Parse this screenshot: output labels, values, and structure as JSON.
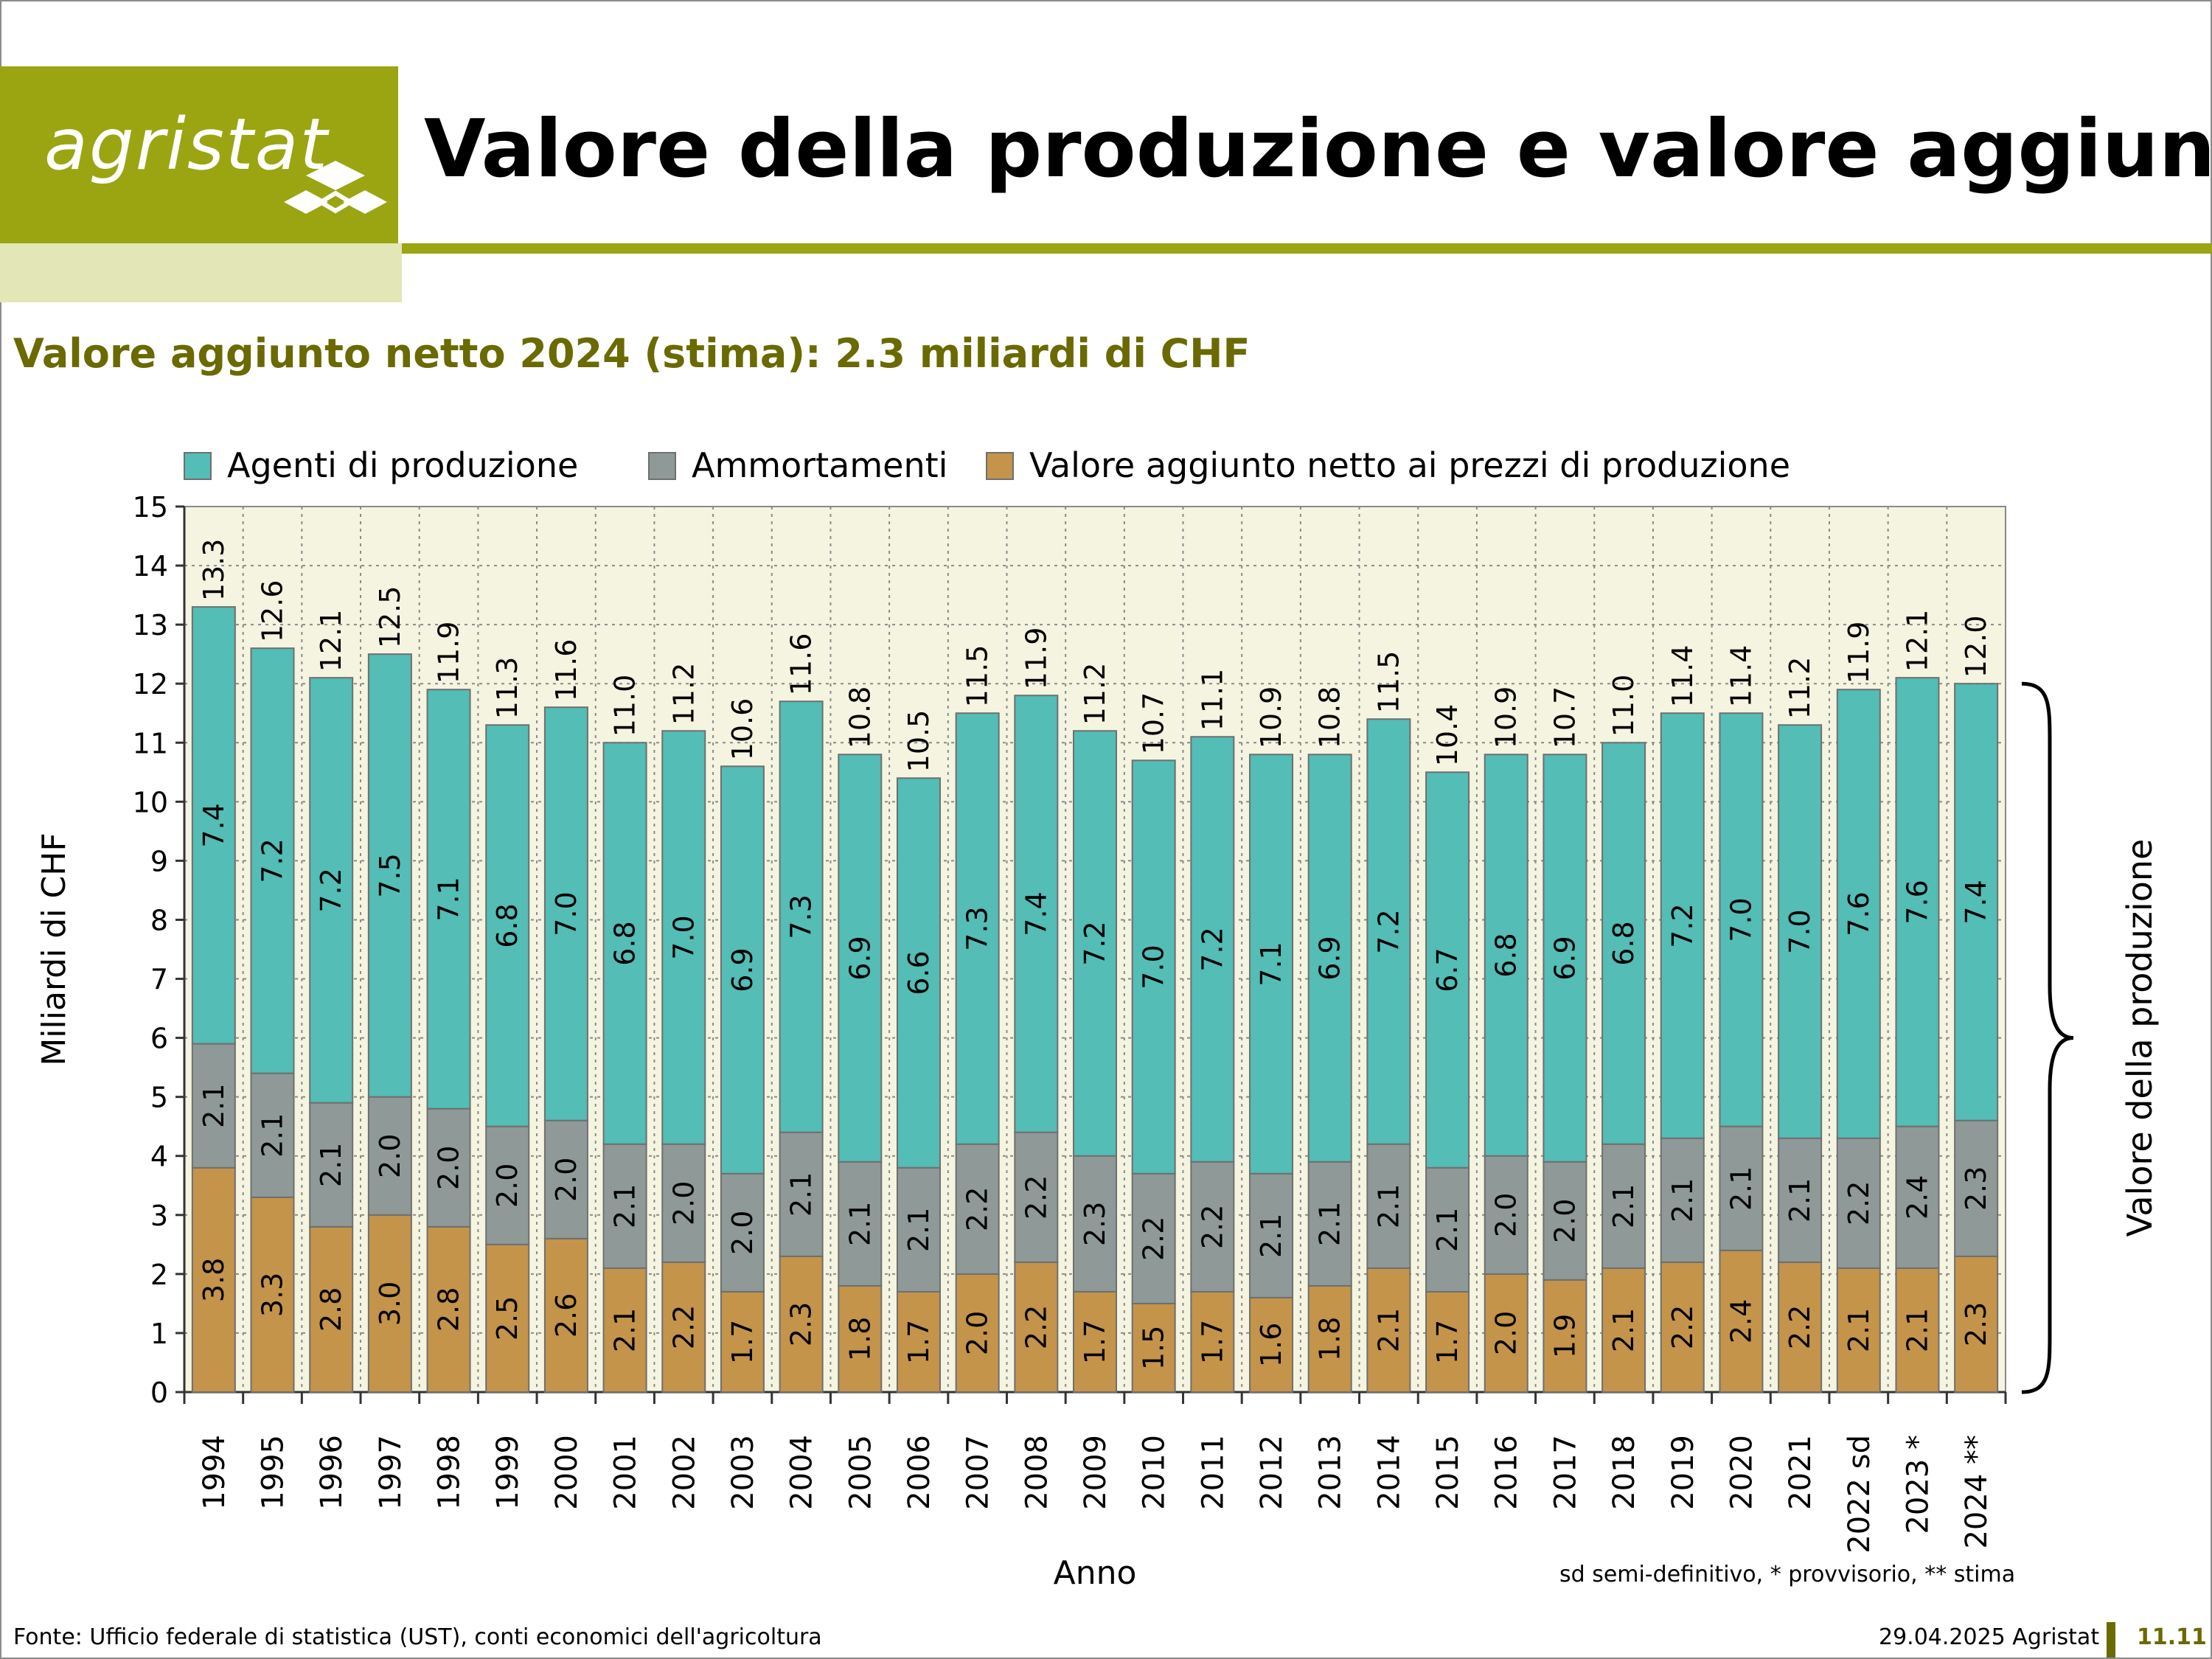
{
  "brand": {
    "logo_text": "agristat",
    "accent": "#9aa511"
  },
  "header": {
    "title": "Valore della produzione e valore aggiunto"
  },
  "subtitle": "Valore aggiunto netto 2024 (stima): 2.3 miliardi di CHF",
  "footer": {
    "source": "Fonte: Ufficio federale di statistica (UST), conti economici dell'agricoltura",
    "date": "29.04.2025 Agristat",
    "page": "11.11"
  },
  "note": "sd semi-definitivo, * provvisorio, ** stima",
  "chart_data": {
    "type": "bar",
    "stacked": true,
    "categories": [
      "1994",
      "1995",
      "1996",
      "1997",
      "1998",
      "1999",
      "2000",
      "2001",
      "2002",
      "2003",
      "2004",
      "2005",
      "2006",
      "2007",
      "2008",
      "2009",
      "2010",
      "2011",
      "2012",
      "2013",
      "2014",
      "2015",
      "2016",
      "2017",
      "2018",
      "2019",
      "2020",
      "2021",
      "2022 sd",
      "2023 *",
      "2024 **"
    ],
    "series": [
      {
        "name": "Valore aggiunto netto ai prezzi di produzione",
        "color": "#c4944a",
        "values": [
          3.8,
          3.3,
          2.8,
          3.0,
          2.8,
          2.5,
          2.6,
          2.1,
          2.2,
          1.7,
          2.3,
          1.8,
          1.7,
          2.0,
          2.2,
          1.7,
          1.5,
          1.7,
          1.6,
          1.8,
          2.1,
          1.7,
          2.0,
          1.9,
          2.1,
          2.2,
          2.4,
          2.2,
          2.1,
          2.1,
          2.3
        ]
      },
      {
        "name": "Ammortamenti",
        "color": "#8f9a98",
        "values": [
          2.1,
          2.1,
          2.1,
          2.0,
          2.0,
          2.0,
          2.0,
          2.1,
          2.0,
          2.0,
          2.1,
          2.1,
          2.1,
          2.2,
          2.2,
          2.3,
          2.2,
          2.2,
          2.1,
          2.1,
          2.1,
          2.1,
          2.0,
          2.0,
          2.1,
          2.1,
          2.1,
          2.1,
          2.2,
          2.4,
          2.3
        ]
      },
      {
        "name": "Agenti di produzione",
        "color": "#53bdb6",
        "values": [
          7.4,
          7.2,
          7.2,
          7.5,
          7.1,
          6.8,
          7.0,
          6.8,
          7.0,
          6.9,
          7.3,
          6.9,
          6.6,
          7.3,
          7.4,
          7.2,
          7.0,
          7.2,
          7.1,
          6.9,
          7.2,
          6.7,
          6.8,
          6.9,
          6.8,
          7.2,
          7.0,
          7.0,
          7.6,
          7.6,
          7.4
        ]
      }
    ],
    "totals": [
      13.3,
      12.6,
      12.1,
      12.5,
      11.9,
      11.3,
      11.6,
      11.0,
      11.2,
      10.6,
      11.6,
      10.8,
      10.5,
      11.5,
      11.9,
      11.2,
      10.7,
      11.1,
      10.9,
      10.8,
      11.5,
      10.4,
      10.9,
      10.7,
      11.0,
      11.4,
      11.4,
      11.2,
      11.9,
      12.1,
      12.0
    ],
    "legend": [
      "Agenti di produzione",
      "Ammortamenti",
      "Valore aggiunto netto ai prezzi di produzione"
    ],
    "legend_placement": "top",
    "xlabel": "Anno",
    "ylabel": "Miliardi di CHF",
    "ylim": [
      0,
      15
    ],
    "yticks": [
      0,
      1,
      2,
      3,
      4,
      5,
      6,
      7,
      8,
      9,
      10,
      11,
      12,
      13,
      14,
      15
    ],
    "grid": true,
    "plot_background": "#f4f4e0",
    "brace_label": "Valore della produzione"
  }
}
